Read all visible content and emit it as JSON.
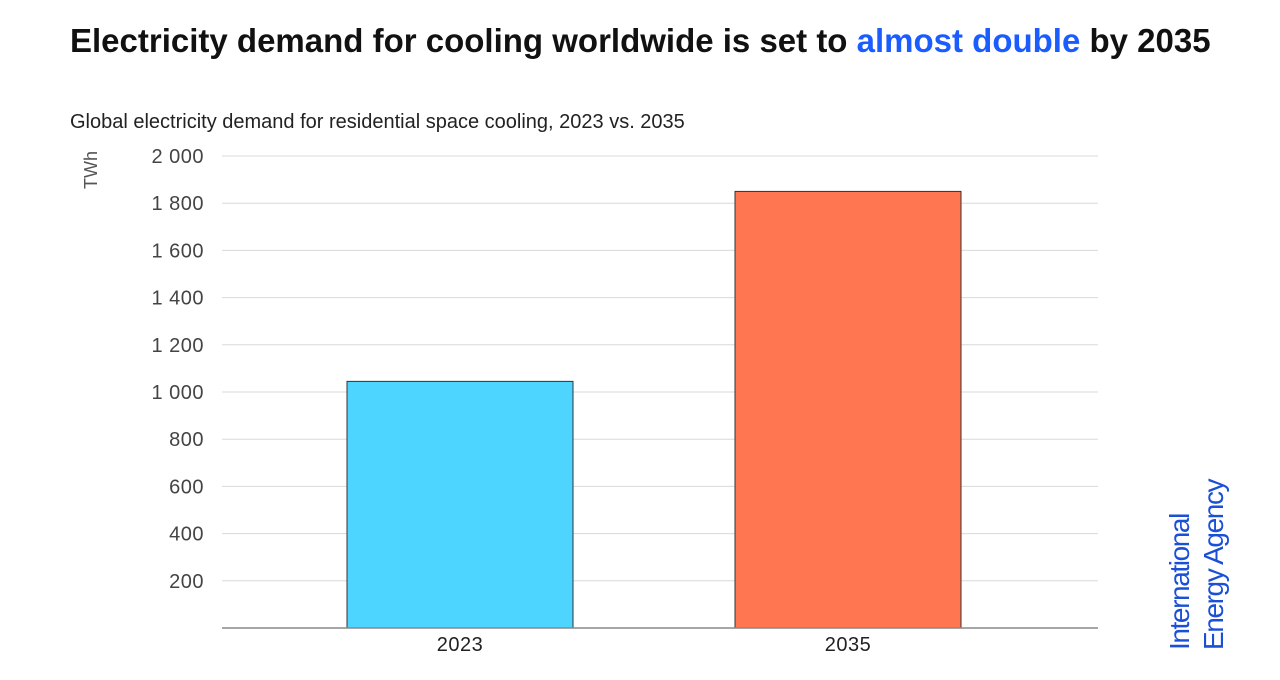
{
  "header": {
    "title_part1": "Electricity demand for cooling worldwide is set to ",
    "title_highlight": "almost double",
    "title_part2": " by 2035",
    "subtitle": "Global electricity demand for residential space cooling, 2023 vs. 2035"
  },
  "chart_data": {
    "type": "bar",
    "title": "Electricity demand for cooling worldwide is set to almost double by 2035",
    "subtitle": "Global electricity demand for residential space cooling, 2023 vs. 2035",
    "xlabel": "",
    "ylabel": "TWh",
    "categories": [
      "2023",
      "2035"
    ],
    "values": [
      1045,
      1850
    ],
    "bar_colors": [
      "#4dd4ff",
      "#ff7650"
    ],
    "ylim": [
      0,
      2000
    ],
    "yticks": [
      200,
      400,
      600,
      800,
      1000,
      1200,
      1400,
      1600,
      1800,
      2000
    ],
    "ytick_labels": [
      "200",
      "400",
      "600",
      "800",
      "1 000",
      "1 200",
      "1 400",
      "1 600",
      "1 800",
      "2 000"
    ],
    "grid": true
  },
  "logo": {
    "line1": "International",
    "line2": "Energy Agency"
  },
  "colors": {
    "accent": "#1a5cff",
    "logo": "#1a4fd6",
    "grid": "#d9d9d9",
    "axis": "#888888",
    "tick_text": "#444444"
  }
}
